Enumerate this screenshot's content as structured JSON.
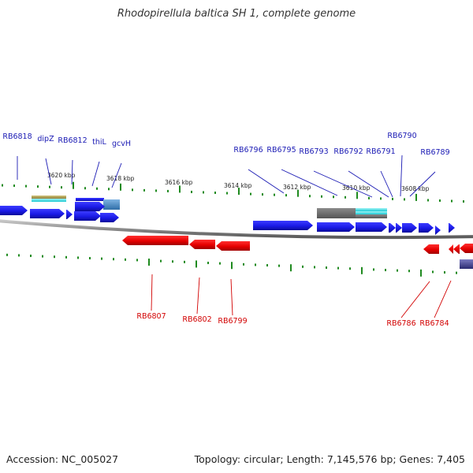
{
  "title": "Rhodopirellula baltica SH 1, complete genome",
  "footer": {
    "accession": "Accession: NC_005027",
    "summary": "Topology: circular; Length: 7,145,576 bp; Genes: 7,405"
  },
  "colors": {
    "forward": "#1a1ae6",
    "reverse": "#e60000",
    "forward_label": "#1a1ab4",
    "reverse_label": "#d20000",
    "tick": "#1f8a1f",
    "backbone": "#909090",
    "feature_gray": "#6f6f6f",
    "feature_cyan": "#33d6de",
    "feature_khaki": "#b4a55a",
    "feature_steel": "#4f8fc8",
    "feature_navy": "#4a4a90"
  },
  "scale": {
    "unit": "kbp",
    "labels": [
      "3620 kbp",
      "3618 kbp",
      "3616 kbp",
      "3614 kbp",
      "3612 kbp",
      "3610 kbp",
      "3608 kbp"
    ]
  },
  "forward_gene_labels": [
    "RB6818",
    "dipZ",
    "RB6812",
    "thiL",
    "gcvH",
    "RB6796",
    "RB6795",
    "RB6793",
    "RB6792",
    "RB6791",
    "RB6790",
    "RB6789"
  ],
  "reverse_gene_labels": [
    "RB6807",
    "RB6802",
    "RB6799",
    "RB6786",
    "RB6784"
  ]
}
